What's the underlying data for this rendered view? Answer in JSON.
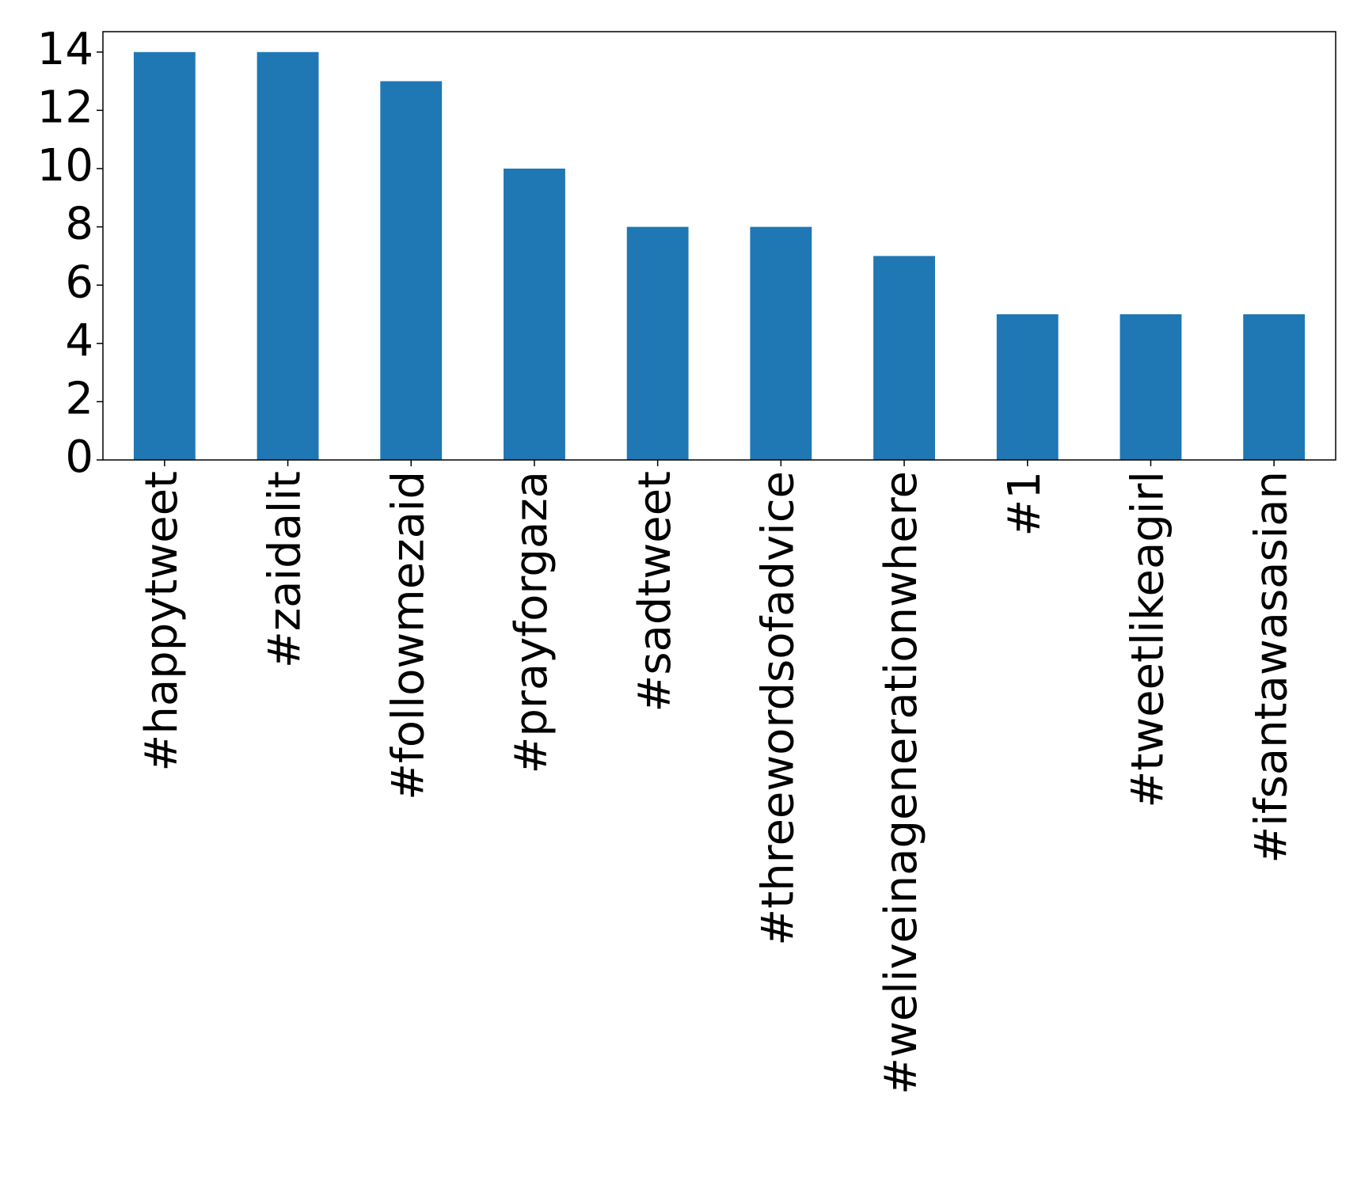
{
  "chart_data": {
    "type": "bar",
    "categories": [
      "#happytweet",
      "#zaidalit",
      "#followmezaid",
      "#prayforgaza",
      "#sadtweet",
      "#threewordsofadvice",
      "#weliveinagenerationwhere",
      "#1",
      "#tweetlikeagirl",
      "#ifsantawasasian"
    ],
    "values": [
      14,
      14,
      13,
      10,
      8,
      8,
      7,
      5,
      5,
      5
    ],
    "color": "#1f77b4",
    "ylim": [
      0,
      14.7
    ],
    "yticks": [
      0,
      2,
      4,
      6,
      8,
      10,
      12,
      14
    ],
    "grid": false
  }
}
